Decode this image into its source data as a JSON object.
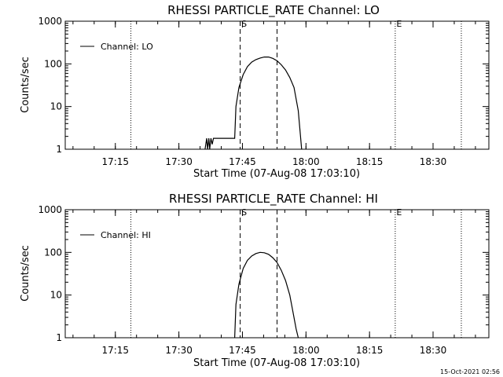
{
  "timestamp": "15-Oct-2021 02:56",
  "chart_data": [
    {
      "type": "line",
      "title": "RHESSI PARTICLE_RATE Channel: LO",
      "xlabel": "Start Time (07-Aug-08 17:03:10)",
      "ylabel": "Counts/sec",
      "yscale": "log",
      "ylim": [
        1,
        1000
      ],
      "yticks": [
        1,
        10,
        100,
        1000
      ],
      "yticklabels": [
        "1",
        "10",
        "100",
        "1000"
      ],
      "xlim_minutes": [
        0,
        100
      ],
      "xticks_minutes": [
        11.83,
        26.83,
        41.83,
        56.83,
        71.83,
        86.83
      ],
      "xticklabels": [
        "17:15",
        "17:30",
        "17:45",
        "18:00",
        "18:15",
        "18:30"
      ],
      "legend": "Channel: LO",
      "series": [
        {
          "name": "Channel: LO",
          "x": [
            33.0,
            33.4,
            33.6,
            33.9,
            34.1,
            34.4,
            34.7,
            35.0,
            35.5,
            36.0,
            40.0,
            40.3,
            41.0,
            42.0,
            43.0,
            44.0,
            45.0,
            46.0,
            47.0,
            48.0,
            48.5,
            49.0,
            50.0,
            51.0,
            52.0,
            53.0,
            54.0,
            55.0,
            55.8
          ],
          "y": [
            1.0,
            1.8,
            1.0,
            1.8,
            1.0,
            1.8,
            1.3,
            1.8,
            1.8,
            1.8,
            1.8,
            10.0,
            28,
            56,
            86,
            110,
            126,
            137,
            145,
            145,
            140,
            135,
            118,
            95,
            72,
            48,
            28,
            8,
            1.0
          ]
        }
      ],
      "markers": [
        {
          "label": "S",
          "x": 41.3,
          "style": "dashed"
        },
        {
          "label": "",
          "x": 50.0,
          "style": "dashed"
        },
        {
          "label": "E",
          "x": 77.9,
          "style": "dotted"
        },
        {
          "label": "",
          "x": 15.5,
          "style": "dotted"
        },
        {
          "label": "",
          "x": 93.5,
          "style": "dotted"
        }
      ]
    },
    {
      "type": "line",
      "title": "RHESSI PARTICLE_RATE Channel: HI",
      "xlabel": "Start Time (07-Aug-08 17:03:10)",
      "ylabel": "Counts/sec",
      "yscale": "log",
      "ylim": [
        1,
        1000
      ],
      "yticks": [
        1,
        10,
        100,
        1000
      ],
      "yticklabels": [
        "1",
        "10",
        "100",
        "1000"
      ],
      "xlim_minutes": [
        0,
        100
      ],
      "xticks_minutes": [
        11.83,
        26.83,
        41.83,
        56.83,
        71.83,
        86.83
      ],
      "xticklabels": [
        "17:15",
        "17:30",
        "17:45",
        "18:00",
        "18:15",
        "18:30"
      ],
      "legend": "Channel: HI",
      "series": [
        {
          "name": "Channel: HI",
          "x": [
            40.0,
            40.3,
            41.0,
            42.0,
            43.0,
            44.0,
            45.0,
            46.0,
            47.0,
            48.0,
            49.0,
            50.0,
            51.0,
            52.0,
            53.0,
            53.8,
            54.5,
            55.0
          ],
          "y": [
            1.0,
            6.0,
            18,
            42,
            65,
            82,
            94,
            100,
            98,
            90,
            75,
            58,
            38,
            22,
            10,
            3.8,
            1.6,
            1.0
          ]
        }
      ],
      "markers": [
        {
          "label": "S",
          "x": 41.3,
          "style": "dashed"
        },
        {
          "label": "",
          "x": 50.0,
          "style": "dashed"
        },
        {
          "label": "E",
          "x": 77.9,
          "style": "dotted"
        },
        {
          "label": "",
          "x": 15.5,
          "style": "dotted"
        },
        {
          "label": "",
          "x": 93.5,
          "style": "dotted"
        }
      ]
    }
  ]
}
